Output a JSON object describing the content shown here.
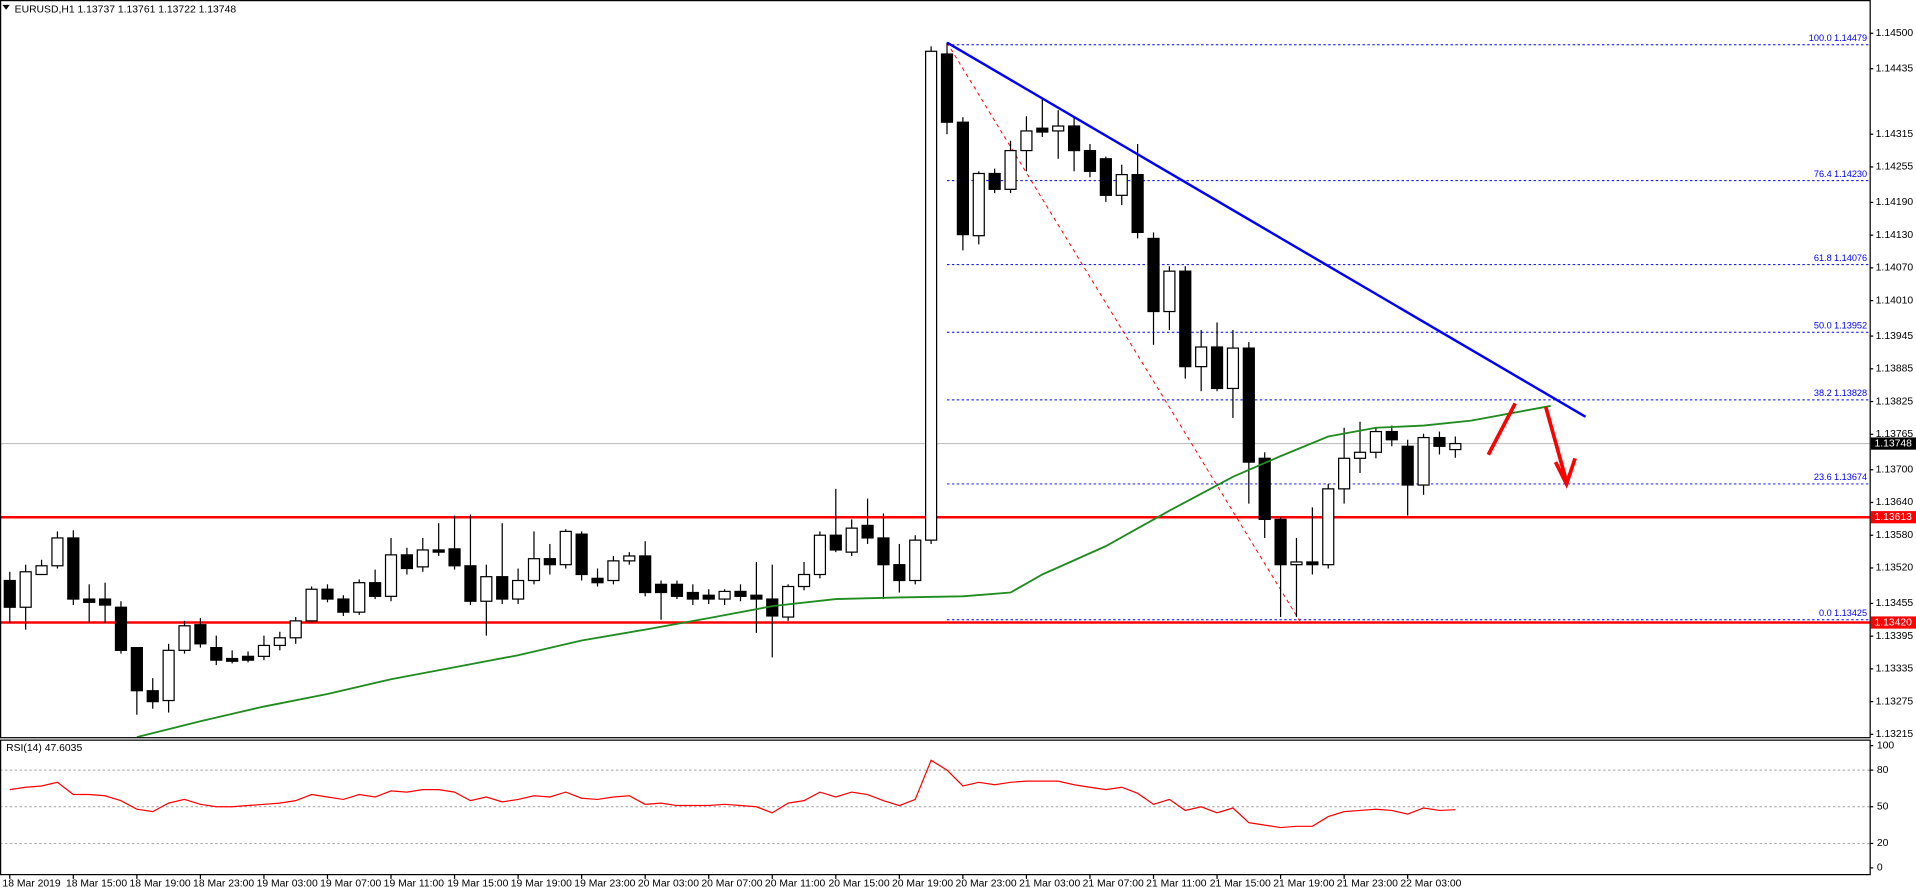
{
  "chart_data": [
    {
      "type": "candlestick",
      "header": "EURUSD,H1  1.13737 1.13761 1.13722 1.13748",
      "categories": [
        "18 Mar 2019",
        null,
        null,
        null,
        "18 Mar 15:00",
        null,
        null,
        null,
        "18 Mar 19:00",
        null,
        null,
        null,
        "18 Mar 23:00",
        null,
        null,
        null,
        "19 Mar 03:00",
        null,
        null,
        null,
        "19 Mar 07:00",
        null,
        null,
        null,
        "19 Mar 11:00",
        null,
        null,
        null,
        "19 Mar 15:00",
        null,
        null,
        null,
        "19 Mar 19:00",
        null,
        null,
        null,
        "19 Mar 23:00",
        null,
        null,
        null,
        "20 Mar 03:00",
        null,
        null,
        null,
        "20 Mar 07:00",
        null,
        null,
        null,
        "20 Mar 11:00",
        null,
        null,
        null,
        "20 Mar 15:00",
        null,
        null,
        null,
        "20 Mar 19:00",
        null,
        null,
        null,
        "20 Mar 23:00",
        null,
        null,
        null,
        "21 Mar 03:00",
        null,
        null,
        null,
        "21 Mar 07:00",
        null,
        null,
        null,
        "21 Mar 11:00",
        null,
        null,
        null,
        "21 Mar 15:00",
        null,
        null,
        null,
        "21 Mar 19:00",
        null,
        null,
        null,
        "21 Mar 23:00",
        null,
        null,
        null,
        "22 Mar 03:00",
        null,
        null,
        null
      ],
      "ohlc": [
        [
          1.13497,
          1.13513,
          1.13419,
          1.13448
        ],
        [
          1.13448,
          1.13526,
          1.13407,
          1.13513
        ],
        [
          1.13508,
          1.13535,
          1.13508,
          1.13524
        ],
        [
          1.13524,
          1.13587,
          1.13519,
          1.13575
        ],
        [
          1.13575,
          1.13589,
          1.13452,
          1.13463
        ],
        [
          1.13463,
          1.1349,
          1.13419,
          1.13457
        ],
        [
          1.13463,
          1.13493,
          1.13419,
          1.13452
        ],
        [
          1.13448,
          1.13459,
          1.13363,
          1.13369
        ],
        [
          1.13374,
          1.13374,
          1.13251,
          1.13295
        ],
        [
          1.13295,
          1.13318,
          1.13262,
          1.13275
        ],
        [
          1.13277,
          1.13381,
          1.13255,
          1.13369
        ],
        [
          1.13369,
          1.13423,
          1.13363,
          1.13414
        ],
        [
          1.13416,
          1.13428,
          1.13374,
          1.13381
        ],
        [
          1.13374,
          1.13396,
          1.13342,
          1.13351
        ],
        [
          1.13354,
          1.13369,
          1.13345,
          1.13349
        ],
        [
          1.13358,
          1.13367,
          1.13347,
          1.13351
        ],
        [
          1.13358,
          1.13396,
          1.13351,
          1.13378
        ],
        [
          1.13378,
          1.13403,
          1.13369,
          1.13392
        ],
        [
          1.13392,
          1.1343,
          1.13381,
          1.13423
        ],
        [
          1.13423,
          1.13486,
          1.13419,
          1.13481
        ],
        [
          1.13481,
          1.1349,
          1.13457,
          1.13463
        ],
        [
          1.13463,
          1.1347,
          1.13432,
          1.13439
        ],
        [
          1.13439,
          1.13499,
          1.13434,
          1.13493
        ],
        [
          1.13493,
          1.13517,
          1.13463,
          1.13468
        ],
        [
          1.13468,
          1.13575,
          1.13459,
          1.13544
        ],
        [
          1.13544,
          1.13557,
          1.13508,
          1.13519
        ],
        [
          1.13522,
          1.13575,
          1.13513,
          1.13553
        ],
        [
          1.13553,
          1.13602,
          1.13542,
          1.13549
        ],
        [
          1.13555,
          1.13616,
          1.13517,
          1.13524
        ],
        [
          1.13524,
          1.13618,
          1.13452,
          1.13459
        ],
        [
          1.13459,
          1.13526,
          1.13396,
          1.13504
        ],
        [
          1.13504,
          1.13602,
          1.13454,
          1.13463
        ],
        [
          1.13463,
          1.13519,
          1.13454,
          1.13497
        ],
        [
          1.13497,
          1.13587,
          1.1349,
          1.13537
        ],
        [
          1.13537,
          1.13564,
          1.13508,
          1.13526
        ],
        [
          1.13526,
          1.13591,
          1.13519,
          1.13587
        ],
        [
          1.13582,
          1.13587,
          1.13497,
          1.13508
        ],
        [
          1.13501,
          1.13519,
          1.13486,
          1.13493
        ],
        [
          1.13497,
          1.13542,
          1.1349,
          1.13533
        ],
        [
          1.13533,
          1.13549,
          1.13526,
          1.13542
        ],
        [
          1.13542,
          1.13569,
          1.13468,
          1.13475
        ],
        [
          1.1349,
          1.13497,
          1.13425,
          1.13475
        ],
        [
          1.1349,
          1.13497,
          1.13463,
          1.13468
        ],
        [
          1.13475,
          1.1349,
          1.13452,
          1.13463
        ],
        [
          1.1347,
          1.13481,
          1.13454,
          1.13463
        ],
        [
          1.13463,
          1.13481,
          1.13452,
          1.13477
        ],
        [
          1.13477,
          1.1349,
          1.13459,
          1.13468
        ],
        [
          1.1347,
          1.13531,
          1.13401,
          1.13463
        ],
        [
          1.13463,
          1.13526,
          1.13356,
          1.13432
        ],
        [
          1.1343,
          1.1349,
          1.13423,
          1.13486
        ],
        [
          1.13486,
          1.13531,
          1.13479,
          1.13508
        ],
        [
          1.13508,
          1.13587,
          1.13501,
          1.1358
        ],
        [
          1.1358,
          1.13665,
          1.13549,
          1.13553
        ],
        [
          1.13549,
          1.13609,
          1.13542,
          1.13593
        ],
        [
          1.13598,
          1.13647,
          1.13564,
          1.13575
        ],
        [
          1.13575,
          1.1362,
          1.13463,
          1.13526
        ],
        [
          1.13526,
          1.13564,
          1.13475,
          1.13497
        ],
        [
          1.13497,
          1.1358,
          1.1349,
          1.13571
        ],
        [
          1.13571,
          1.14476,
          1.13564,
          1.14467
        ],
        [
          1.14462,
          1.14483,
          1.14315,
          1.14337
        ],
        [
          1.14337,
          1.14346,
          1.14102,
          1.14131
        ],
        [
          1.14129,
          1.14247,
          1.14113,
          1.14243
        ],
        [
          1.14243,
          1.14252,
          1.14207,
          1.14214
        ],
        [
          1.14214,
          1.14303,
          1.14207,
          1.14285
        ],
        [
          1.14285,
          1.14348,
          1.14247,
          1.14321
        ],
        [
          1.14326,
          1.14382,
          1.1431,
          1.14319
        ],
        [
          1.14321,
          1.14359,
          1.1427,
          1.1433
        ],
        [
          1.1433,
          1.14348,
          1.14247,
          1.14285
        ],
        [
          1.14285,
          1.14297,
          1.14236,
          1.14247
        ],
        [
          1.1427,
          1.14274,
          1.14191,
          1.14203
        ],
        [
          1.14203,
          1.14259,
          1.14185,
          1.14241
        ],
        [
          1.14241,
          1.14297,
          1.14124,
          1.14135
        ],
        [
          1.14124,
          1.14135,
          1.13929,
          1.1399
        ],
        [
          1.1399,
          1.14073,
          1.13956,
          1.14064
        ],
        [
          1.14064,
          1.14073,
          1.13867,
          1.13889
        ],
        [
          1.13889,
          1.13956,
          1.13844,
          1.13925
        ],
        [
          1.13925,
          1.1397,
          1.13844,
          1.13849
        ],
        [
          1.13849,
          1.13956,
          1.13795,
          1.13923
        ],
        [
          1.13923,
          1.13934,
          1.13638,
          1.13714
        ],
        [
          1.13721,
          1.13732,
          1.13575,
          1.13609
        ],
        [
          1.13609,
          1.13613,
          1.1343,
          1.13526
        ],
        [
          1.13526,
          1.13575,
          1.1343,
          1.13531
        ],
        [
          1.13531,
          1.13631,
          1.13508,
          1.13526
        ],
        [
          1.13526,
          1.13674,
          1.13519,
          1.13665
        ],
        [
          1.13665,
          1.13777,
          1.13638,
          1.13721
        ],
        [
          1.13721,
          1.13788,
          1.13694,
          1.13732
        ],
        [
          1.13732,
          1.13777,
          1.13721,
          1.1377
        ],
        [
          1.1377,
          1.13781,
          1.13743,
          1.13755
        ],
        [
          1.13743,
          1.13755,
          1.13616,
          1.13672
        ],
        [
          1.13672,
          1.13766,
          1.13654,
          1.13759
        ],
        [
          1.13759,
          1.1377,
          1.13728,
          1.13743
        ],
        [
          1.13737,
          1.13761,
          1.13722,
          1.13748
        ]
      ],
      "colors": {
        "up": "#ffffff",
        "down": "#000000"
      },
      "ylim": [
        1.1321,
        1.14561
      ],
      "yticks": [
        {
          "value": 1.145,
          "label": "1.14500"
        },
        1.14435,
        1.14315,
        1.14255,
        {
          "value": 1.1419,
          "label": "1.14190"
        },
        {
          "value": 1.1413,
          "label": "1.14130"
        },
        {
          "value": 1.1407,
          "label": "1.14070"
        },
        {
          "value": 1.1401,
          "label": "1.14010"
        },
        1.13945,
        1.13885,
        1.13825,
        1.13765,
        {
          "value": 1.137,
          "label": "1.13700"
        },
        {
          "value": 1.1364,
          "label": "1.13640"
        },
        {
          "value": 1.1358,
          "label": "1.13580"
        },
        {
          "value": 1.1352,
          "label": "1.13520"
        },
        1.13455,
        1.13395,
        1.13335,
        1.13275,
        1.13215
      ],
      "ma": {
        "color": "#1e8c1e",
        "x": [
          8,
          12,
          16,
          20,
          24,
          28,
          32,
          36,
          40,
          44,
          48,
          52,
          56,
          60,
          63,
          65,
          69,
          73,
          77,
          80,
          83,
          86,
          89,
          92,
          97
        ],
        "values": [
          1.1321,
          1.13239,
          1.13266,
          1.13289,
          1.13316,
          1.13338,
          1.1336,
          1.13387,
          1.13407,
          1.13428,
          1.1345,
          1.13463,
          1.13466,
          1.13468,
          1.13475,
          1.13508,
          1.1356,
          1.13625,
          1.13687,
          1.13725,
          1.13761,
          1.13777,
          1.13781,
          1.1379,
          1.13817
        ]
      },
      "trendline": {
        "color": "#0000ff",
        "x": [
          59,
          99.2
        ],
        "values": [
          1.14483,
          1.13797
        ]
      },
      "fib_line": {
        "color": "#ff0000",
        "x": [
          59,
          81.2
        ],
        "values": [
          1.14483,
          1.13423
        ]
      },
      "fib_start": 59,
      "fib_color": "#0000ff",
      "fib_levels": [
        {
          "level": "100.0",
          "value": 1.14479
        },
        {
          "level": "76.4",
          "value": 1.1423,
          "label": "1.14230"
        },
        {
          "level": "61.8",
          "value": 1.14076
        },
        {
          "level": "50.0",
          "value": 1.13952
        },
        {
          "level": "38.2",
          "value": 1.13828
        },
        {
          "level": "23.6",
          "value": 1.13674
        },
        {
          "level": "0.0",
          "value": 1.13425
        }
      ],
      "levels": [
        {
          "value": 1.13613,
          "color": "#ff0000"
        },
        {
          "value": 1.1342,
          "label": "1.13420",
          "color": "#ff0000"
        }
      ],
      "current_price": 1.13748
    },
    {
      "type": "line",
      "title": "RSI(14) 47.6035",
      "color": "#ff0000",
      "values": [
        64,
        66,
        67,
        70,
        60,
        60,
        59,
        55,
        48,
        46,
        53,
        56,
        52,
        50,
        50,
        51,
        52,
        53,
        55,
        60,
        58,
        56,
        60,
        58,
        63,
        62,
        64,
        64,
        62,
        55,
        58,
        54,
        56,
        59,
        58,
        62,
        57,
        56,
        58,
        59,
        52,
        53,
        51,
        51,
        51,
        52,
        51,
        50,
        45,
        53,
        55,
        62,
        58,
        62,
        60,
        55,
        51,
        56,
        88,
        80,
        67,
        70,
        68,
        70,
        71,
        71,
        71,
        68,
        66,
        64,
        66,
        61,
        52,
        56,
        47,
        50,
        45,
        49,
        37,
        35,
        33,
        34,
        34,
        42,
        46,
        47,
        48,
        47,
        44,
        49,
        47,
        47.6035
      ],
      "ylim": [
        0,
        100
      ],
      "yticks": [
        0,
        20,
        50,
        80,
        100
      ]
    }
  ]
}
